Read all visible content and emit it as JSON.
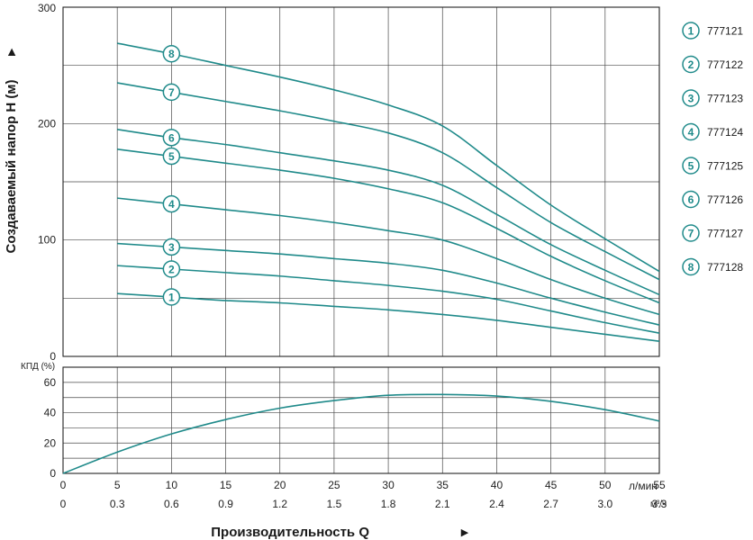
{
  "colors": {
    "curve": "#1f8a8a",
    "grid": "#4a4a4a",
    "text": "#1a1a1a"
  },
  "chart_data": [
    {
      "type": "line",
      "ylabel": "Создаваемый напор H (м)",
      "xlabel": "Производительность Q",
      "x_unit_label": "л/мин",
      "x2_unit_label": "м³/ч",
      "xlim": [
        0,
        55
      ],
      "ylim": [
        0,
        300
      ],
      "x_ticks": [
        "0",
        "5",
        "10",
        "15",
        "20",
        "25",
        "30",
        "35",
        "40",
        "45",
        "50",
        "55"
      ],
      "x_ticks_m3h": [
        "0",
        "0.3",
        "0.6",
        "0.9",
        "1.2",
        "1.5",
        "1.8",
        "2.1",
        "2.4",
        "2.7",
        "3.0",
        "3.3"
      ],
      "y_ticks": [
        "0",
        "100",
        "200",
        "300"
      ],
      "grid": true,
      "legend_position": "right",
      "series": [
        {
          "marker": "1",
          "name": "777121",
          "x": [
            5,
            10,
            15,
            20,
            25,
            30,
            35,
            40,
            45,
            50,
            55
          ],
          "y": [
            54,
            51,
            48,
            46,
            43,
            40,
            36,
            31,
            25,
            19,
            13
          ]
        },
        {
          "marker": "2",
          "name": "777122",
          "x": [
            5,
            10,
            15,
            20,
            25,
            30,
            35,
            40,
            45,
            50,
            55
          ],
          "y": [
            78,
            75,
            72,
            69,
            65,
            61,
            56,
            49,
            39,
            29,
            20
          ]
        },
        {
          "marker": "3",
          "name": "777123",
          "x": [
            5,
            10,
            15,
            20,
            25,
            30,
            35,
            40,
            45,
            50,
            55
          ],
          "y": [
            97,
            94,
            91,
            88,
            84,
            80,
            74,
            63,
            50,
            38,
            27
          ]
        },
        {
          "marker": "4",
          "name": "777124",
          "x": [
            5,
            10,
            15,
            20,
            25,
            30,
            35,
            40,
            45,
            50,
            55
          ],
          "y": [
            136,
            131,
            126,
            121,
            115,
            108,
            100,
            84,
            66,
            50,
            36
          ]
        },
        {
          "marker": "5",
          "name": "777125",
          "x": [
            5,
            10,
            15,
            20,
            25,
            30,
            35,
            40,
            45,
            50,
            55
          ],
          "y": [
            178,
            172,
            166,
            160,
            153,
            144,
            132,
            110,
            86,
            65,
            46
          ]
        },
        {
          "marker": "6",
          "name": "777126",
          "x": [
            5,
            10,
            15,
            20,
            25,
            30,
            35,
            40,
            45,
            50,
            55
          ],
          "y": [
            195,
            188,
            182,
            175,
            168,
            160,
            147,
            122,
            96,
            74,
            53
          ]
        },
        {
          "marker": "7",
          "name": "777127",
          "x": [
            5,
            10,
            15,
            20,
            25,
            30,
            35,
            40,
            45,
            50,
            55
          ],
          "y": [
            235,
            227,
            219,
            211,
            202,
            192,
            175,
            145,
            115,
            90,
            66
          ]
        },
        {
          "marker": "8",
          "name": "777128",
          "x": [
            5,
            10,
            15,
            20,
            25,
            30,
            35,
            40,
            45,
            50,
            55
          ],
          "y": [
            269,
            260,
            250,
            240,
            229,
            216,
            198,
            164,
            130,
            101,
            73
          ]
        }
      ]
    },
    {
      "type": "line",
      "ylabel": "КПД (%)",
      "xlim": [
        0,
        55
      ],
      "ylim": [
        0,
        70
      ],
      "y_ticks": [
        "0",
        "20",
        "40",
        "60"
      ],
      "grid": true,
      "series": [
        {
          "x": [
            0,
            5,
            10,
            15,
            20,
            25,
            30,
            35,
            40,
            45,
            50,
            55
          ],
          "y": [
            0,
            14,
            26,
            35.5,
            43,
            48,
            51.5,
            52,
            51,
            47.5,
            42,
            34.5
          ]
        }
      ]
    }
  ]
}
